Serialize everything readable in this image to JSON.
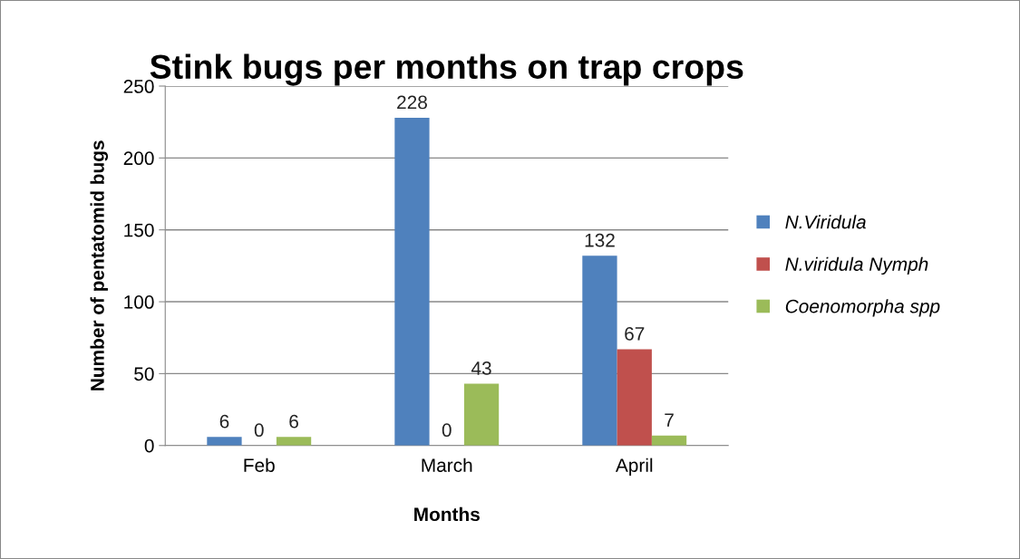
{
  "chart_data": {
    "type": "bar",
    "title": "Stink bugs per months on trap crops",
    "xlabel": "Months",
    "ylabel": "Number of pentatomid bugs",
    "categories": [
      "Feb",
      "March",
      "April"
    ],
    "series": [
      {
        "name": "N.Viridula",
        "color": "#4f81bd",
        "values": [
          6,
          228,
          132
        ]
      },
      {
        "name": "N.viridula Nymph",
        "color": "#c0504d",
        "values": [
          0,
          0,
          67
        ]
      },
      {
        "name": "Coenomorpha spp",
        "color": "#9bbb59",
        "values": [
          6,
          43,
          7
        ]
      }
    ],
    "ylim": [
      0,
      250
    ],
    "yticks": [
      0,
      50,
      100,
      150,
      200,
      250
    ],
    "grid": "y",
    "legend": "right",
    "data_labels": true
  }
}
